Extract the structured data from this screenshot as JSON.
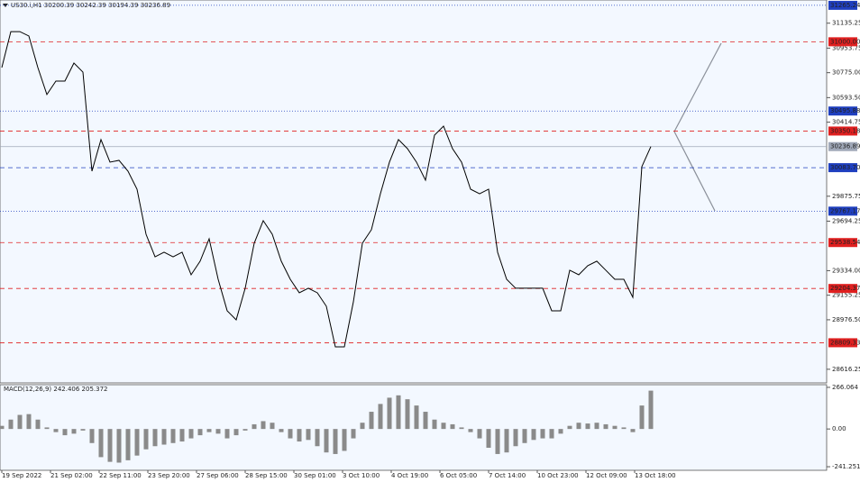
{
  "chart_data": {
    "type": "price-line",
    "title": "US30.i,H1  30200.39 30242.39 30194.39 30236.89",
    "color": "#000000",
    "ylim": [
      28517,
      31304
    ],
    "yticks": [
      31135.25,
      30953.75,
      {
        "value": 30775,
        "label": "30775.00"
      },
      {
        "value": 30593.5,
        "label": "30593.50"
      },
      30414.75,
      29875.75,
      29694.25,
      {
        "value": 29334,
        "label": "29334.00"
      },
      29155.25,
      {
        "value": 28976.5,
        "label": "28976.50"
      },
      28616.25
    ],
    "levels": [
      {
        "value": 31265.24,
        "color": "#1f3fbf",
        "dash": "1 2"
      },
      {
        "value": 31000,
        "label": "31000.00",
        "color": "#e02020",
        "dash": "5 4"
      },
      {
        "value": 30495.88,
        "color": "#1f3fbf",
        "dash": "1 2"
      },
      {
        "value": 30350.18,
        "color": "#e02020",
        "dash": "5 4"
      },
      {
        "value": 30236.89,
        "color": "#a0a8b8",
        "dash": "none"
      },
      {
        "value": 30083.7,
        "label": "30083.70",
        "color": "#1f3fbf",
        "dash": "5 4"
      },
      {
        "value": 29767.17,
        "color": "#1f3fbf",
        "dash": "1 2"
      },
      {
        "value": 29538.54,
        "color": "#e02020",
        "dash": "5 4"
      },
      {
        "value": 29204.37,
        "color": "#e02020",
        "dash": "5 4"
      },
      {
        "value": 28809.33,
        "color": "#e02020",
        "dash": "5 4"
      }
    ],
    "values": [
      30812,
      31074,
      31074,
      31042,
      30812,
      30616,
      30714,
      30714,
      30845,
      30779,
      30058,
      30288,
      30124,
      30137,
      30058,
      29927,
      29599,
      29435,
      29468,
      29435,
      29468,
      29304,
      29403,
      29566,
      29271,
      29042,
      28976,
      29206,
      29534,
      29698,
      29599,
      29403,
      29271,
      29173,
      29206,
      29173,
      29075,
      28779,
      28779,
      29107,
      29534,
      29632,
      29894,
      30124,
      30288,
      30222,
      30124,
      29993,
      30320,
      30386,
      30222,
      30124,
      29927,
      29894,
      29927,
      29468,
      29271,
      29206,
      29206,
      29206,
      29206,
      29042,
      29042,
      29337,
      29304,
      29370,
      29403,
      29337,
      29271,
      29271,
      29140,
      30091,
      30237
    ],
    "xlabels": [
      "19 Sep 2022",
      "21 Sep 02:00",
      "22 Sep 11:00",
      "23 Sep 20:00",
      "27 Sep 06:00",
      "28 Sep 15:00",
      "30 Sep 01:00",
      "3 Oct 10:00",
      "4 Oct 19:00",
      "6 Oct 05:00",
      "7 Oct 14:00",
      "10 Oct 23:00",
      "12 Oct 09:00",
      "13 Oct 18:00"
    ],
    "macd": {
      "title": "MACD(12,26,9) 242.406 205.372",
      "color": "#8a8a8a",
      "ylim": [
        -264,
        283
      ],
      "yticks": [
        266.064,
        {
          "value": 0,
          "label": "0.00"
        },
        -241.251
      ],
      "values": [
        20,
        60,
        90,
        95,
        60,
        10,
        -20,
        -40,
        -30,
        -10,
        -90,
        -180,
        -210,
        -215,
        -200,
        -170,
        -130,
        -110,
        -100,
        -90,
        -80,
        -60,
        -40,
        -20,
        -30,
        -60,
        -40,
        -10,
        30,
        50,
        40,
        -20,
        -60,
        -80,
        -70,
        -110,
        -150,
        -160,
        -140,
        -60,
        40,
        110,
        160,
        200,
        215,
        190,
        150,
        110,
        60,
        40,
        30,
        10,
        -20,
        -60,
        -120,
        -160,
        -150,
        -110,
        -90,
        -70,
        -60,
        -60,
        -30,
        20,
        40,
        35,
        40,
        30,
        20,
        10,
        -20,
        150,
        245
      ]
    }
  }
}
